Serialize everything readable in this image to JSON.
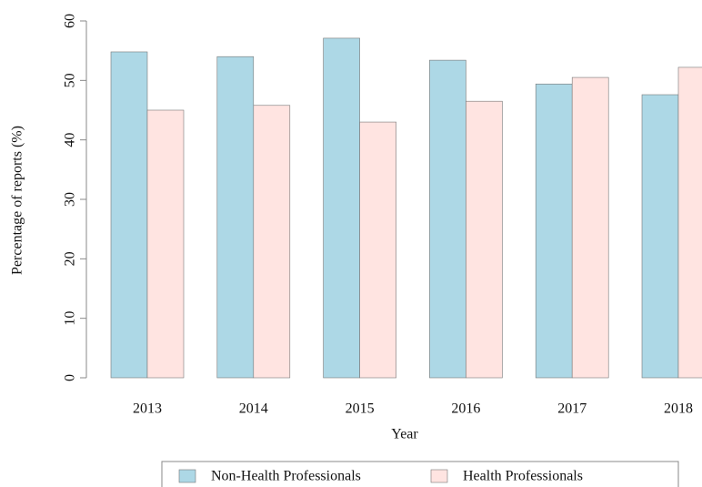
{
  "chart_data": {
    "type": "bar",
    "x_label": "Year",
    "y_label": "Percentage of reports  (%)",
    "categories": [
      "2013",
      "2014",
      "2015",
      "2016",
      "2017",
      "2018"
    ],
    "series": [
      {
        "name": "Non-Health Professionals",
        "color": "#add8e6",
        "values": [
          54.8,
          54.0,
          57.1,
          53.4,
          49.4,
          47.6
        ]
      },
      {
        "name": "Health Professionals",
        "color": "#ffe4e1",
        "values": [
          45.0,
          45.8,
          43.0,
          46.5,
          50.5,
          52.2
        ]
      }
    ],
    "ylim": [
      0,
      60
    ],
    "yticks": [
      0,
      10,
      20,
      30,
      40,
      50,
      60
    ]
  }
}
